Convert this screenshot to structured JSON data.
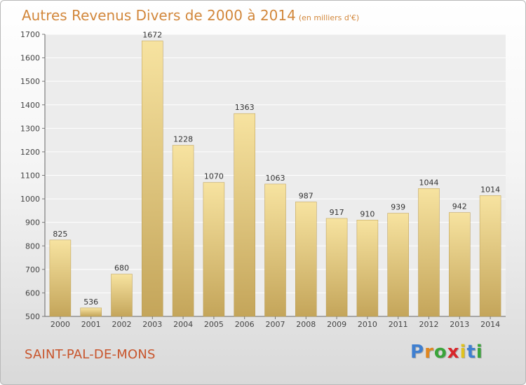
{
  "chart_data": {
    "type": "bar",
    "title": "Autres Revenus Divers de 2000 à 2014",
    "subtitle": "(en milliers d'€)",
    "categories": [
      "2000",
      "2001",
      "2002",
      "2003",
      "2004",
      "2005",
      "2006",
      "2007",
      "2008",
      "2009",
      "2010",
      "2011",
      "2012",
      "2013",
      "2014"
    ],
    "values": [
      825,
      536,
      680,
      1672,
      1228,
      1070,
      1363,
      1063,
      987,
      917,
      910,
      939,
      1044,
      942,
      1014
    ],
    "ylim": [
      500,
      1700
    ],
    "yticks": [
      500,
      600,
      700,
      800,
      900,
      1000,
      1100,
      1200,
      1300,
      1400,
      1500,
      1600,
      1700
    ],
    "grid": true,
    "bar_color": "#e8cf82"
  },
  "footer": {
    "location": "SAINT-PAL-DE-MONS",
    "brand_letters": [
      "P",
      "r",
      "o",
      "x",
      "i",
      "t",
      "i"
    ],
    "brand_colors": [
      "#3f7fd0",
      "#e0861e",
      "#3aa43a",
      "#d8262a",
      "#e0c21e",
      "#3f7fd0",
      "#3aa43a"
    ]
  }
}
